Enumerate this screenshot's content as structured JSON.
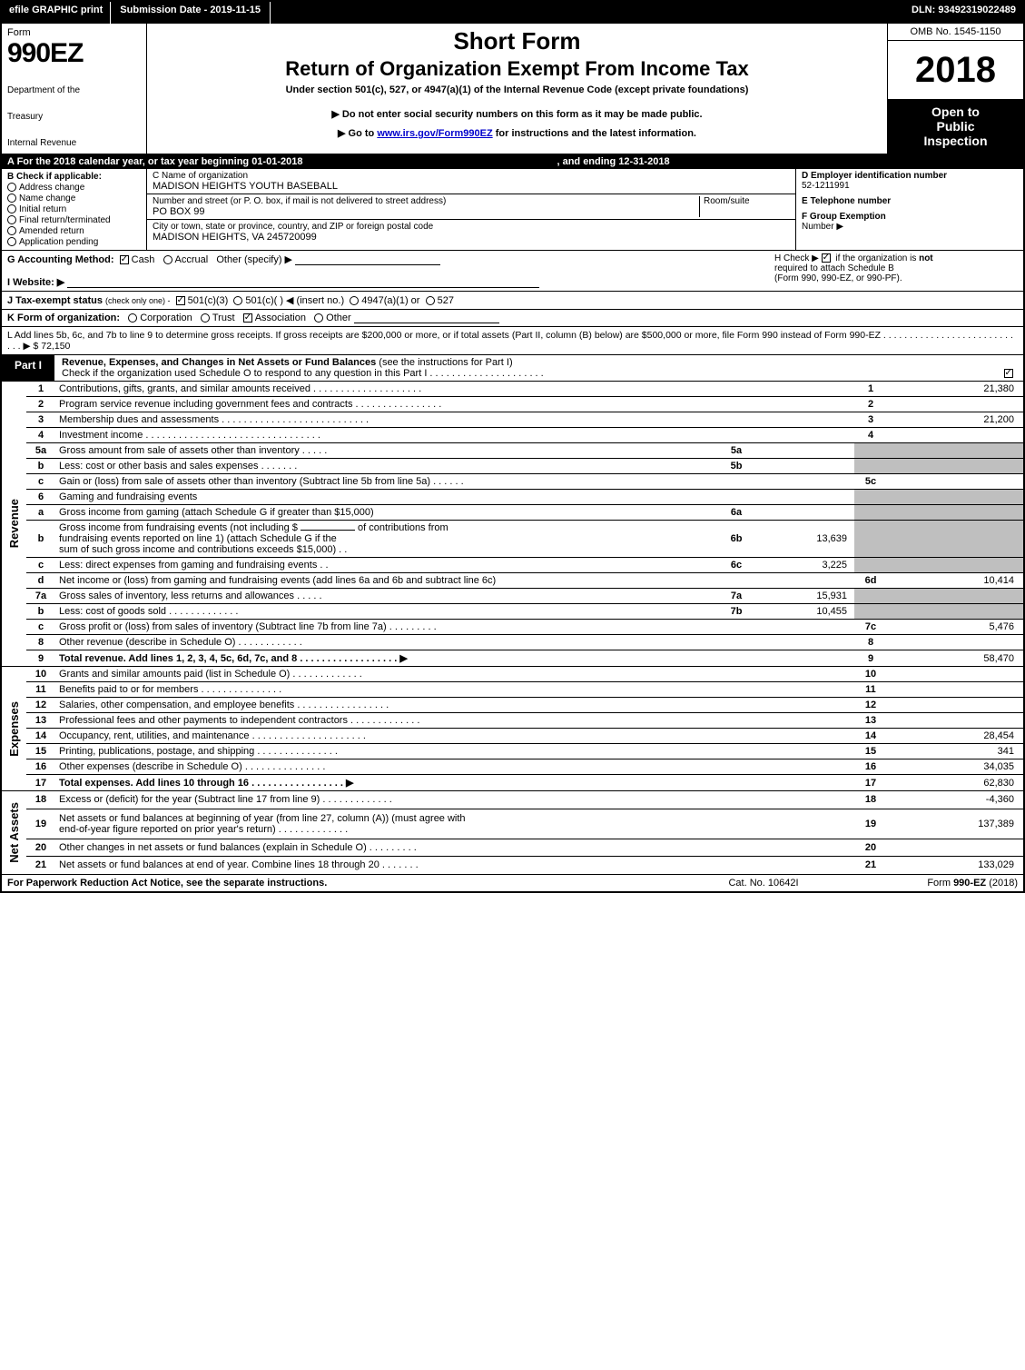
{
  "colors": {
    "black": "#000000",
    "white": "#ffffff",
    "shade": "#bfbfbf",
    "link": "#0000cc"
  },
  "topbar": {
    "efile": "efile GRAPHIC print",
    "subdate_label": "Submission Date - 2019-11-15",
    "dln": "DLN: 93492319022489"
  },
  "header": {
    "form_label": "Form",
    "form_no": "990EZ",
    "dept1": "Department of the",
    "dept2": "Treasury",
    "dept3": "Internal Revenue",
    "short": "Short Form",
    "title": "Return of Organization Exempt From Income Tax",
    "sub": "Under section 501(c), 527, or 4947(a)(1) of the Internal Revenue Code (except private foundations)",
    "note1": "▶ Do not enter social security numbers on this form as it may be made public.",
    "note2_pre": "▶ Go to ",
    "note2_link": "www.irs.gov/Form990EZ",
    "note2_post": " for instructions and the latest information.",
    "omb": "OMB No. 1545-1150",
    "year": "2018",
    "open1": "Open to",
    "open2": "Public",
    "open3": "Inspection"
  },
  "calrow": {
    "left": "A  For the 2018 calendar year, or tax year beginning 01-01-2018",
    "right": ", and ending 12-31-2018"
  },
  "entity": {
    "B_label": "B  Check if applicable:",
    "B_items": [
      "Address change",
      "Name change",
      "Initial return",
      "Final return/terminated",
      "Amended return",
      "Application pending"
    ],
    "C_lbl": "C Name of organization",
    "C_name": "MADISON HEIGHTS YOUTH BASEBALL",
    "addr_lbl": "Number and street (or P. O. box, if mail is not delivered to street address)",
    "room_lbl": "Room/suite",
    "addr": "PO BOX 99",
    "city_lbl": "City or town, state or province, country, and ZIP or foreign postal code",
    "city": "MADISON HEIGHTS, VA  245720099",
    "D_lbl": "D Employer identification number",
    "D_val": "52-1211991",
    "E_lbl": "E Telephone number",
    "F_lbl": "F Group Exemption",
    "F_lbl2": "Number   ▶"
  },
  "G": {
    "lbl": "G Accounting Method:",
    "cash": "Cash",
    "accrual": "Accrual",
    "other": "Other (specify) ▶"
  },
  "H": {
    "pre": "H   Check ▶ ",
    "post": " if the organization is ",
    "not": "not",
    "line2": "required to attach Schedule B",
    "line3": "(Form 990, 990-EZ, or 990-PF)."
  },
  "I": {
    "lbl": "I Website: ▶"
  },
  "J": {
    "lbl": "J Tax-exempt status",
    "small": "(check only one) -",
    "a": "501(c)(3)",
    "b": "501(c)( ) ◀ (insert no.)",
    "c": "4947(a)(1) or",
    "d": "527"
  },
  "K": {
    "lbl": "K Form of organization:",
    "a": "Corporation",
    "b": "Trust",
    "c": "Association",
    "d": "Other"
  },
  "L": {
    "text": "L Add lines 5b, 6c, and 7b to line 9 to determine gross receipts. If gross receipts are $200,000 or more, or if total assets (Part II, column (B) below) are $500,000 or more, file Form 990 instead of Form 990-EZ  .   .   .   .   .   .   .   .   .   .   .   .   .   .   .   .   .   .   .   .   .   .   .   .   .   .   .   .  ▶ $ 72,150"
  },
  "part1": {
    "tag": "Part I",
    "title": "Revenue, Expenses, and Changes in Net Assets or Fund Balances",
    "title2": " (see the instructions for Part I)",
    "check_line": "Check if the organization used Schedule O to respond to any question in this Part I  .   .   .   .   .   .   .   .   .   .   .   .   .   .   .   .   .   .   .   .   ."
  },
  "sidebars": {
    "revenue": "Revenue",
    "expenses": "Expenses",
    "netassets": "Net Assets"
  },
  "rows": [
    {
      "ln": "1",
      "desc": "Contributions, gifts, grants, and similar amounts received  .   .   .   .   .   .   .   .   .   .   .   .   .   .   .   .   .   .   .   .",
      "num": "1",
      "val": "21,380"
    },
    {
      "ln": "2",
      "desc": "Program service revenue including government fees and contracts  .   .   .   .   .   .   .   .   .   .   .   .   .   .   .   .",
      "num": "2",
      "val": ""
    },
    {
      "ln": "3",
      "desc": "Membership dues and assessments  .   .   .   .   .   .   .   .   .   .   .   .   .   .   .   .   .   .   .   .   .   .   .   .   .   .   .",
      "num": "3",
      "val": "21,200"
    },
    {
      "ln": "4",
      "desc": "Investment income  .   .   .   .   .   .   .   .   .   .   .   .   .   .   .   .   .   .   .   .   .   .   .   .   .   .   .   .   .   .   .   .",
      "num": "4",
      "val": ""
    },
    {
      "ln": "5a",
      "desc": "Gross amount from sale of assets other than inventory  .   .   .   .   .",
      "subln": "5a",
      "subval": "",
      "shade": true
    },
    {
      "ln": "b",
      "desc": "Less: cost or other basis and sales expenses  .   .   .   .   .   .   .",
      "subln": "5b",
      "subval": "",
      "shade": true
    },
    {
      "ln": "c",
      "desc": "Gain or (loss) from sale of assets other than inventory (Subtract line 5b from line 5a)  .   .   .   .   .   .",
      "num": "5c",
      "val": ""
    },
    {
      "ln": "6",
      "desc": "Gaming and fundraising events",
      "shade": true
    },
    {
      "ln": "a",
      "desc": "Gross income from gaming (attach Schedule G if greater than $15,000)",
      "subln": "6a",
      "subval": "",
      "shade": true
    },
    {
      "ln": "b",
      "desc_multi": true,
      "desc1": "Gross income from fundraising events (not including $ ",
      "desc1b": " of contributions from",
      "desc2": "fundraising events reported on line 1) (attach Schedule G if the",
      "desc3": "sum of such gross income and contributions exceeds $15,000)     .   .",
      "subln": "6b",
      "subval": "13,639",
      "shade": true
    },
    {
      "ln": "c",
      "desc": "Less: direct expenses from gaming and fundraising events       .   .",
      "subln": "6c",
      "subval": "3,225",
      "shade": true
    },
    {
      "ln": "d",
      "desc": "Net income or (loss) from gaming and fundraising events (add lines 6a and 6b and subtract line 6c)",
      "num": "6d",
      "val": "10,414"
    },
    {
      "ln": "7a",
      "desc": "Gross sales of inventory, less returns and allowances  .   .   .   .   .",
      "subln": "7a",
      "subval": "15,931",
      "shade": true
    },
    {
      "ln": "b",
      "desc": "Less: cost of goods sold         .   .   .   .   .   .   .   .   .   .   .   .   .",
      "subln": "7b",
      "subval": "10,455",
      "shade": true
    },
    {
      "ln": "c",
      "desc": "Gross profit or (loss) from sales of inventory (Subtract line 7b from line 7a)   .   .   .   .   .   .   .   .   .",
      "num": "7c",
      "val": "5,476"
    },
    {
      "ln": "8",
      "desc": "Other revenue (describe in Schedule O)                    .   .   .   .   .   .   .   .   .   .   .   .",
      "num": "8",
      "val": ""
    },
    {
      "ln": "9",
      "desc": "Total revenue. Add lines 1, 2, 3, 4, 5c, 6d, 7c, and 8   .   .   .   .   .   .   .   .   .   .   .   .   .   .   .   .   .   .  ▶",
      "num": "9",
      "val": "58,470",
      "bold": true
    },
    {
      "ln": "10",
      "desc": "Grants and similar amounts paid (list in Schedule O)        .   .   .   .   .   .   .   .   .   .   .   .   .",
      "num": "10",
      "val": ""
    },
    {
      "ln": "11",
      "desc": "Benefits paid to or for members                .   .   .   .   .   .   .   .   .   .   .   .   .   .   .",
      "num": "11",
      "val": ""
    },
    {
      "ln": "12",
      "desc": "Salaries, other compensation, and employee benefits  .   .   .   .   .   .   .   .   .   .   .   .   .   .   .   .   .",
      "num": "12",
      "val": ""
    },
    {
      "ln": "13",
      "desc": "Professional fees and other payments to independent contractors  .   .   .   .   .   .   .   .   .   .   .   .   .",
      "num": "13",
      "val": ""
    },
    {
      "ln": "14",
      "desc": "Occupancy, rent, utilities, and maintenance  .   .   .   .   .   .   .   .   .   .   .   .   .   .   .   .   .   .   .   .   .",
      "num": "14",
      "val": "28,454"
    },
    {
      "ln": "15",
      "desc": "Printing, publications, postage, and shipping          .   .   .   .   .   .   .   .   .   .   .   .   .   .   .",
      "num": "15",
      "val": "341"
    },
    {
      "ln": "16",
      "desc": "Other expenses (describe in Schedule O)             .   .   .   .   .   .   .   .   .   .   .   .   .   .   .",
      "num": "16",
      "val": "34,035"
    },
    {
      "ln": "17",
      "desc": "Total expenses. Add lines 10 through 16        .   .   .   .   .   .   .   .   .   .   .   .   .   .   .   .   .  ▶",
      "num": "17",
      "val": "62,830",
      "bold": true
    },
    {
      "ln": "18",
      "desc": "Excess or (deficit) for the year (Subtract line 17 from line 9)       .   .   .   .   .   .   .   .   .   .   .   .   .",
      "num": "18",
      "val": "-4,360"
    },
    {
      "ln": "19",
      "desc_multi2": true,
      "desc1": "Net assets or fund balances at beginning of year (from line 27, column (A)) (must agree with",
      "desc2": "end-of-year figure reported on prior year's return)         .   .   .   .   .   .   .   .   .   .   .   .   .",
      "num": "19",
      "val": "137,389"
    },
    {
      "ln": "20",
      "desc": "Other changes in net assets or fund balances (explain in Schedule O)     .   .   .   .   .   .   .   .   .",
      "num": "20",
      "val": ""
    },
    {
      "ln": "21",
      "desc": "Net assets or fund balances at end of year. Combine lines 18 through 20       .   .   .   .   .   .   .",
      "num": "21",
      "val": "133,029"
    }
  ],
  "footer": {
    "left": "For Paperwork Reduction Act Notice, see the separate instructions.",
    "center": "Cat. No. 10642I",
    "right_pre": "Form ",
    "right_form": "990-EZ",
    "right_post": " (2018)"
  }
}
